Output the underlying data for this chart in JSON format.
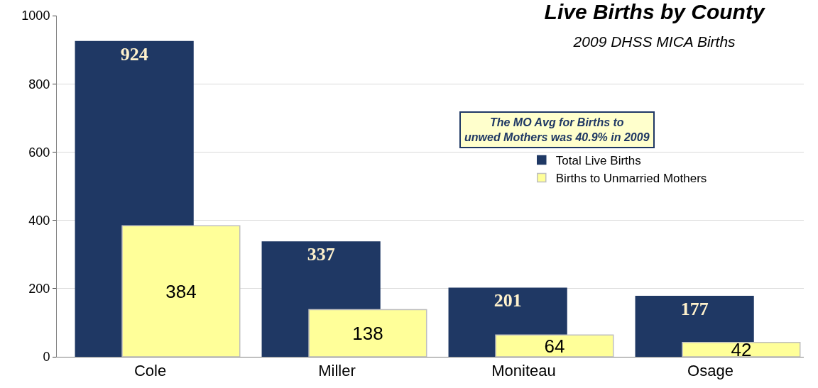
{
  "chart_data": {
    "type": "bar",
    "title": "Live Births by County",
    "subtitle": "2009 DHSS MICA Births",
    "categories": [
      "Cole",
      "Miller",
      "Moniteau",
      "Osage"
    ],
    "series": [
      {
        "name": "Total Live Births",
        "color": "#1f3864",
        "values": [
          924,
          337,
          201,
          177
        ]
      },
      {
        "name": "Births to Unmarried Mothers",
        "color": "#ffff99",
        "values": [
          384,
          138,
          64,
          42
        ]
      }
    ],
    "ylim": [
      0,
      1000
    ],
    "yticks": [
      0,
      200,
      400,
      600,
      800,
      1000
    ],
    "grid": "y",
    "legend": "right",
    "data_labels": true,
    "annotations": [
      "The MO Avg for Births to\nunwed Mothers was 40.9% in 2009"
    ]
  }
}
